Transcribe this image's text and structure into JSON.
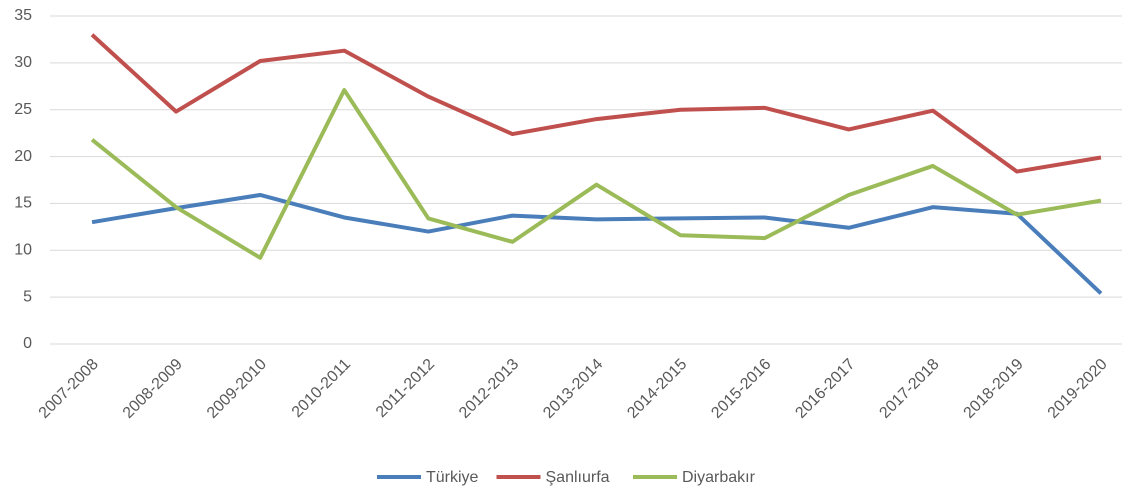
{
  "chart_data": {
    "type": "line",
    "categories": [
      "2007-2008",
      "2008-2009",
      "2009-2010",
      "2010-2011",
      "2011-2012",
      "2012-2013",
      "2013-2014",
      "2014-2015",
      "2015-2016",
      "2016-2017",
      "2017-2018",
      "2018-2019",
      "2019-2020"
    ],
    "series": [
      {
        "name": "Türkiye",
        "color": "#4a7ebb",
        "values": [
          13.0,
          14.5,
          15.9,
          13.5,
          12.0,
          13.7,
          13.3,
          13.4,
          13.5,
          12.4,
          14.6,
          13.9,
          5.4
        ]
      },
      {
        "name": "Şanlıurfa",
        "color": "#c0504d",
        "values": [
          33.0,
          24.8,
          30.2,
          31.3,
          26.4,
          22.4,
          24.0,
          25.0,
          25.2,
          22.9,
          24.9,
          18.4,
          19.9
        ]
      },
      {
        "name": "Diyarbakır",
        "color": "#9bbb59",
        "values": [
          21.8,
          14.6,
          9.2,
          27.1,
          13.4,
          10.9,
          17.0,
          11.6,
          11.3,
          15.9,
          19.0,
          13.8,
          15.3
        ]
      }
    ],
    "ylim": [
      0,
      35
    ],
    "yticks": [
      0,
      5,
      10,
      15,
      20,
      25,
      30,
      35
    ],
    "grid": true,
    "legend": "bottom"
  }
}
